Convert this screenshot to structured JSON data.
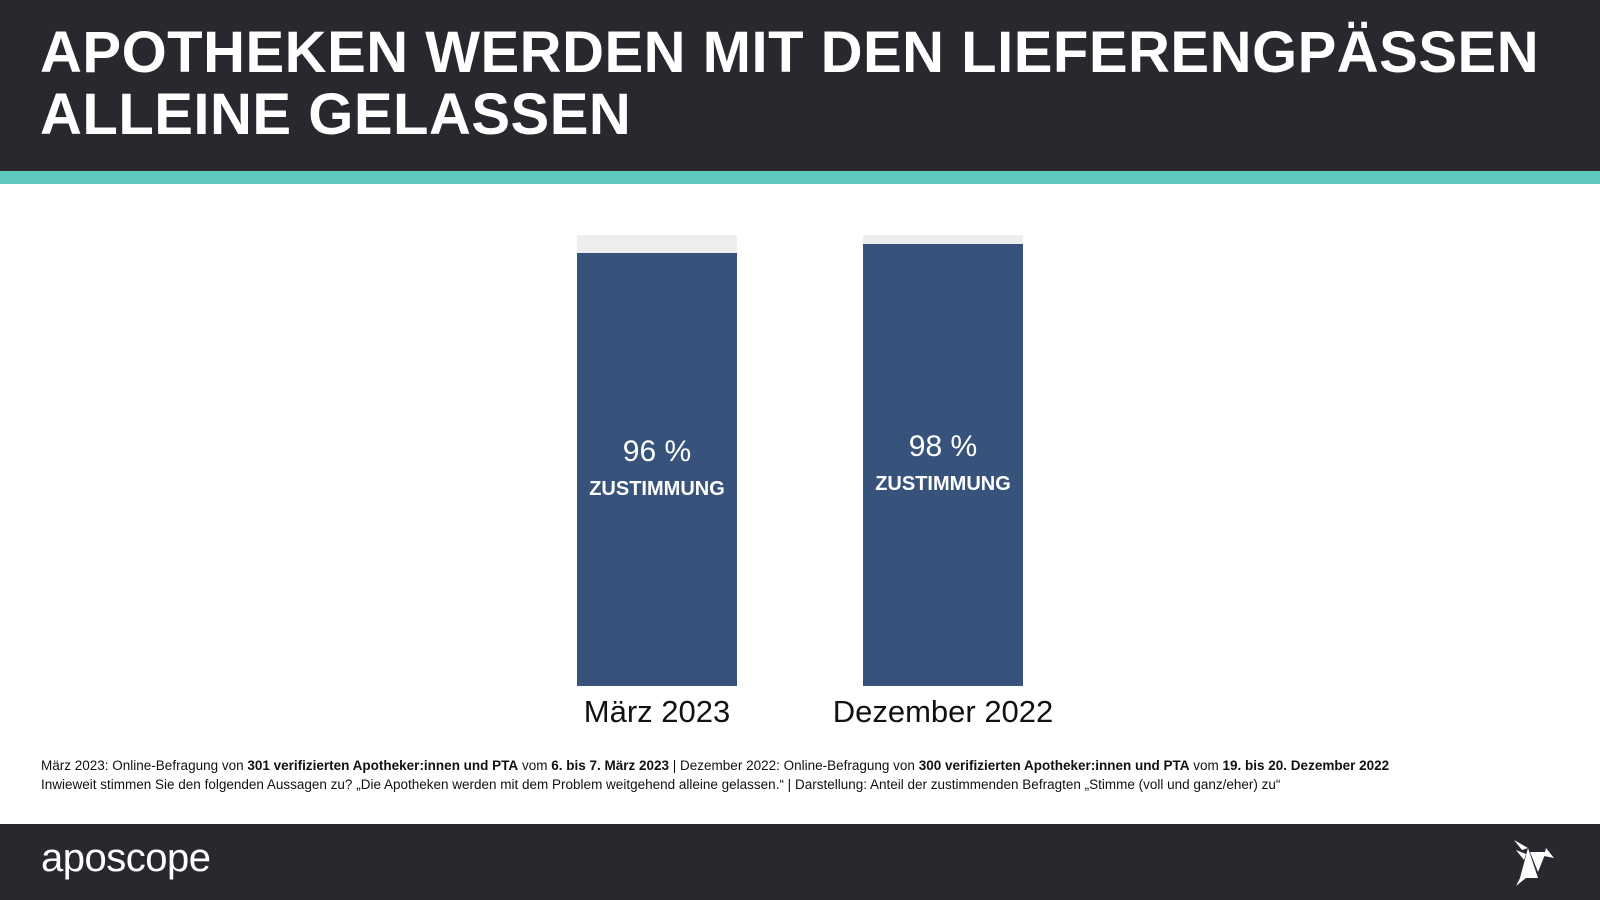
{
  "header": {
    "title_line1": "APOTHEKEN WERDEN MIT DEN LIEFERENGPÄSSEN",
    "title_line2": "ALLEINE GELASSEN"
  },
  "chart_data": {
    "type": "bar",
    "categories": [
      "März 2023",
      "Dezember 2022"
    ],
    "values": [
      96,
      98
    ],
    "value_labels": [
      "96 %",
      "98 %"
    ],
    "sublabel": "ZUSTIMMUNG",
    "ylim": [
      0,
      100
    ],
    "colors": {
      "bar": "#38537b",
      "remainder": "#eeeeee"
    }
  },
  "notes": {
    "l1_a": "März 2023: Online-Befragung von ",
    "l1_b": "301 verifizierten Apotheker:innen und PTA",
    "l1_c": " vom ",
    "l1_d": "6. bis 7. März 2023",
    "l1_e": " | Dezember 2022: Online-Befragung von ",
    "l1_f": "300 verifizierten Apotheker:innen und PTA",
    "l1_g": " vom ",
    "l1_h": "19. bis 20. Dezember 2022",
    "l2": "Inwieweit stimmen Sie den folgenden Aussagen zu? „Die Apotheken werden mit dem Problem weitgehend alleine gelassen.“ | Darstellung: Anteil der zustimmenden Befragten „Stimme (voll und ganz/eher) zu“"
  },
  "footer": {
    "logo": "aposcope",
    "logo_icon": "origami-bird-icon"
  }
}
